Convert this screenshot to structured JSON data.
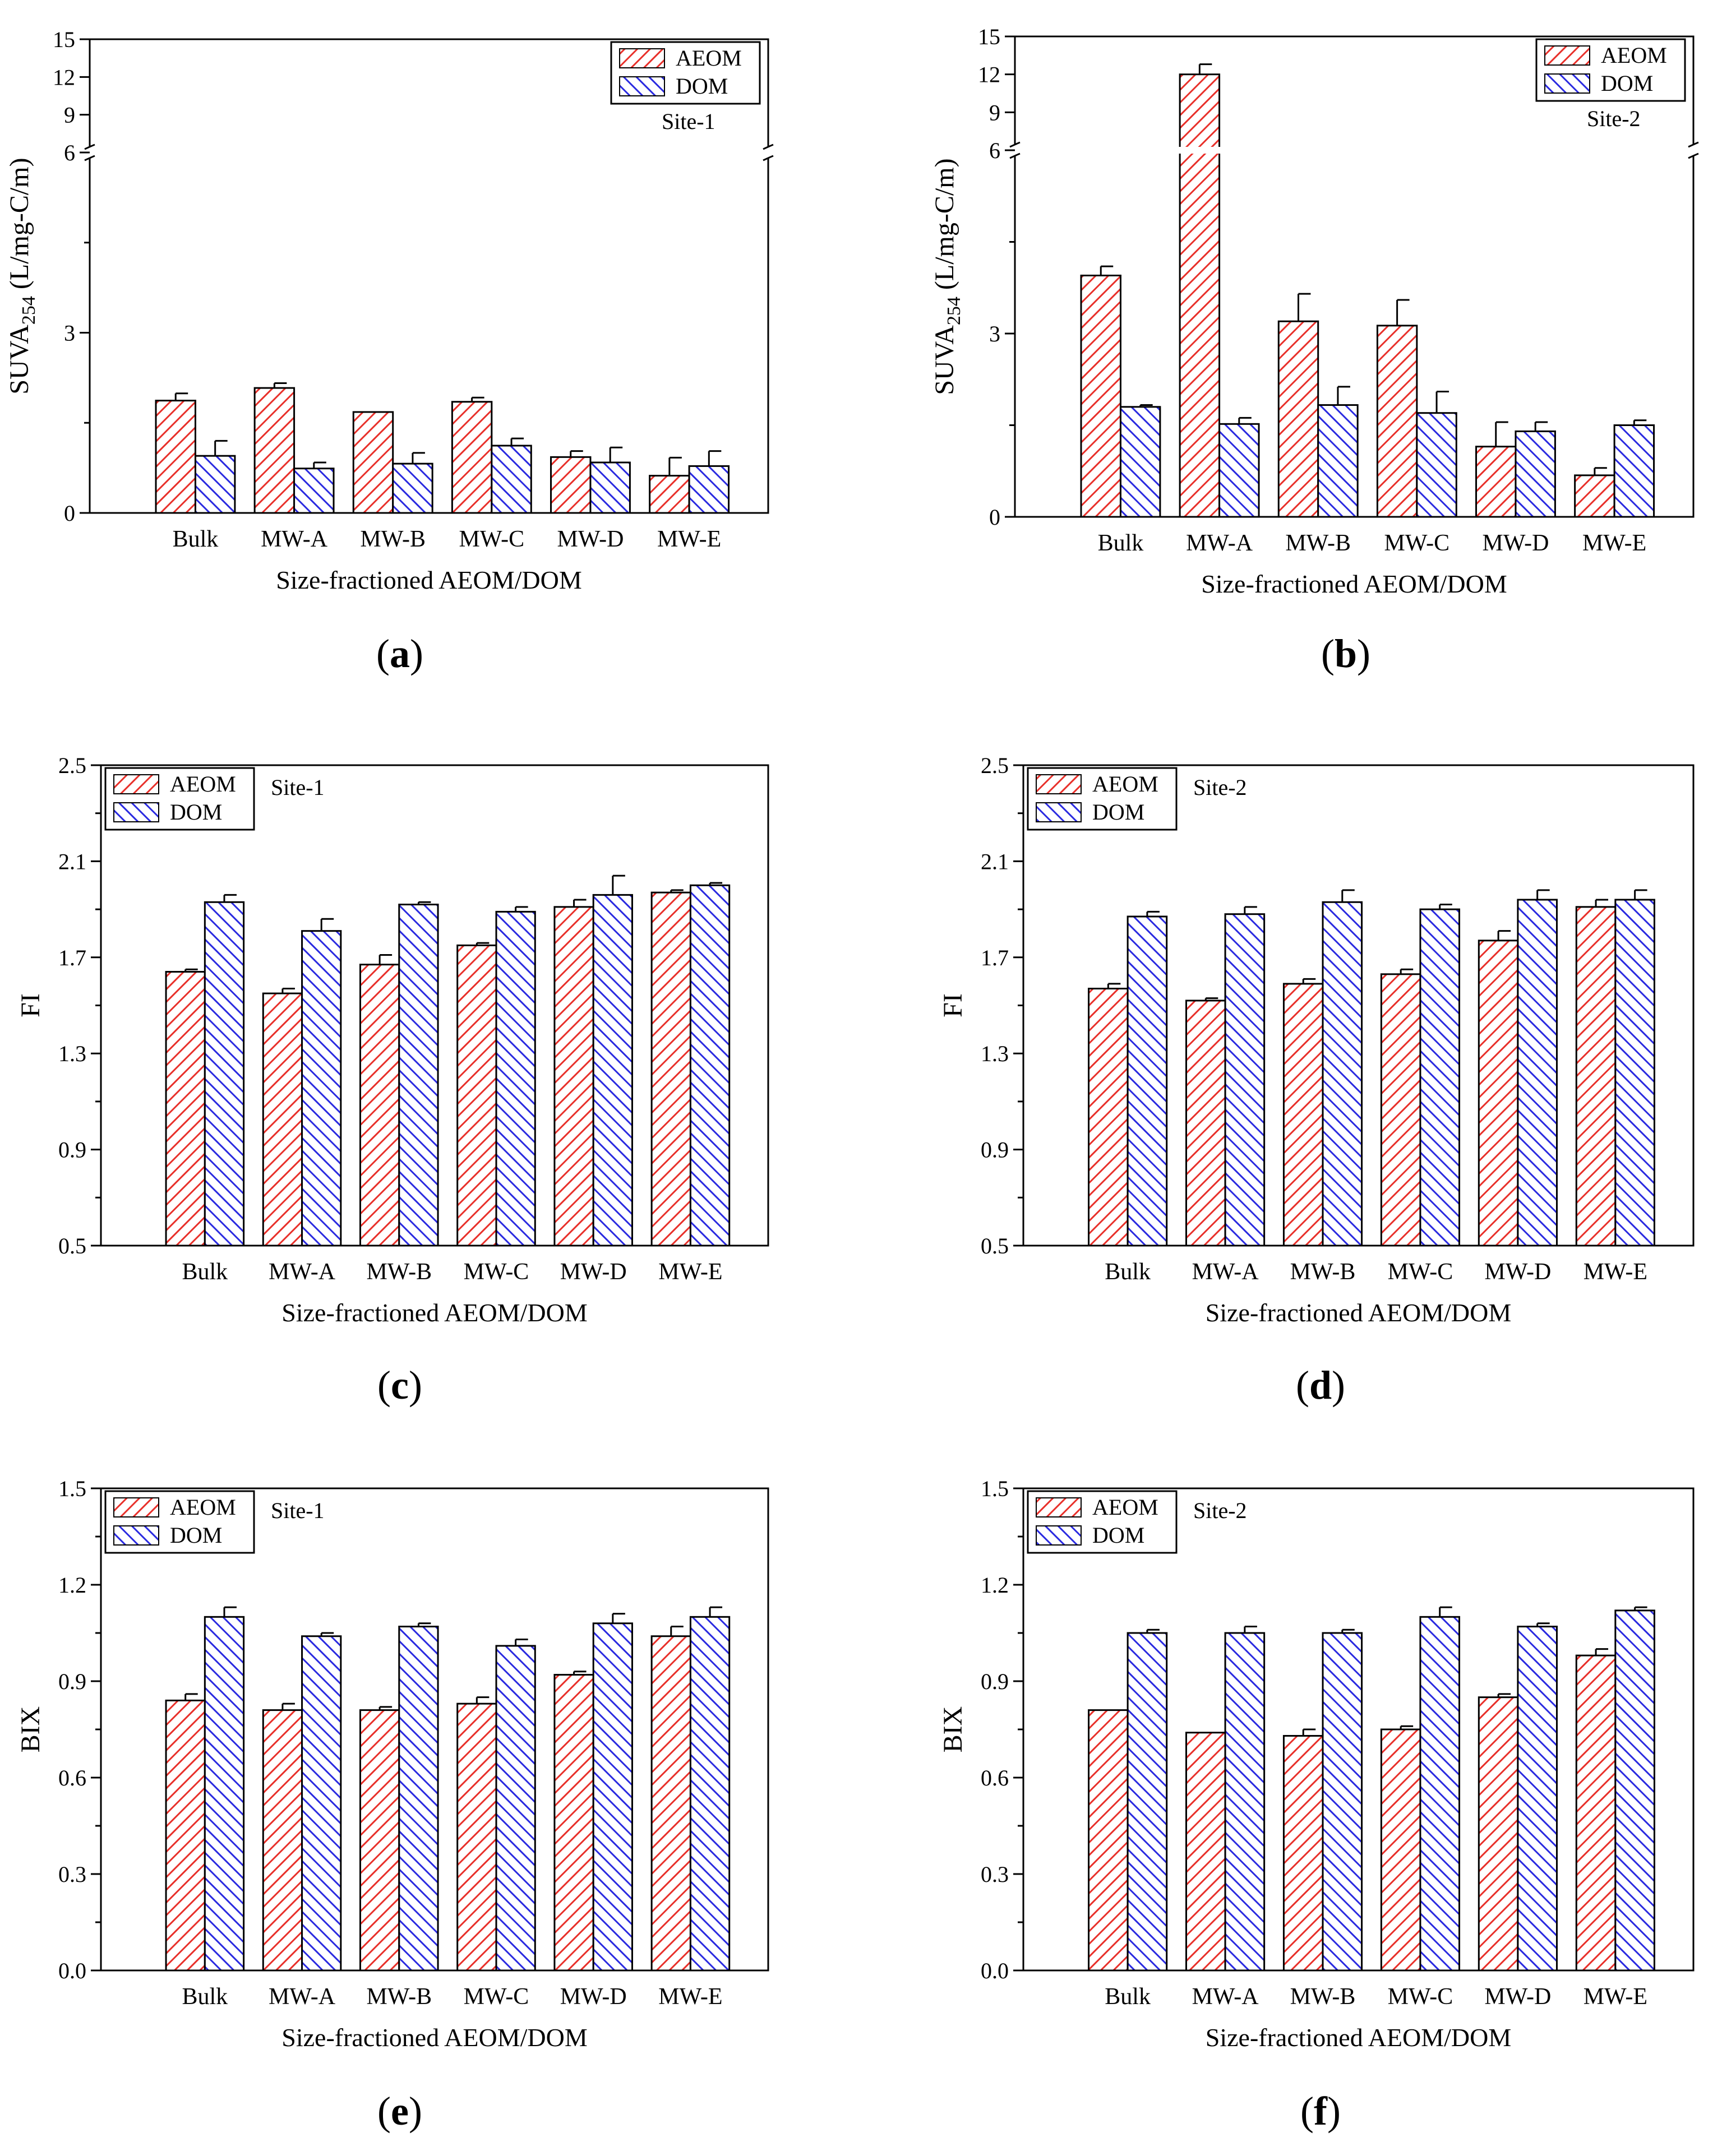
{
  "colors": {
    "aeom": "#e8302a",
    "dom": "#2a2ae0",
    "axis": "#000000"
  },
  "chart_data": [
    {
      "type": "bar",
      "panel_label": "a",
      "site_label": "Site-1",
      "xlabel": "Size-fractioned AEOM/DOM",
      "ylabel_main": "SUVA",
      "ylabel_sub": "254",
      "ylabel_unit": " (L/mg-C/m)",
      "categories": [
        "Bulk",
        "MW-A",
        "MW-B",
        "MW-C",
        "MW-D",
        "MW-E"
      ],
      "series": [
        {
          "name": "AEOM",
          "values": [
            1.87,
            2.08,
            1.68,
            1.85,
            0.93,
            0.62
          ],
          "errors": [
            0.12,
            0.08,
            0.0,
            0.07,
            0.1,
            0.3
          ]
        },
        {
          "name": "DOM",
          "values": [
            0.95,
            0.74,
            0.82,
            1.12,
            0.84,
            0.78
          ],
          "errors": [
            0.25,
            0.1,
            0.18,
            0.12,
            0.25,
            0.25
          ]
        }
      ],
      "y_axis": {
        "lower": [
          0,
          6
        ],
        "upper": [
          6,
          15
        ],
        "lower_ticks": [
          "0",
          "3",
          "6"
        ],
        "upper_ticks": [
          "9",
          "12",
          "15"
        ],
        "broken": true
      },
      "legend_position": "top-right"
    },
    {
      "type": "bar",
      "panel_label": "b",
      "site_label": "Site-2",
      "xlabel": "Size-fractioned AEOM/DOM",
      "ylabel_main": "SUVA",
      "ylabel_sub": "254",
      "ylabel_unit": " (L/mg-C/m)",
      "categories": [
        "Bulk",
        "MW-A",
        "MW-B",
        "MW-C",
        "MW-D",
        "MW-E"
      ],
      "series": [
        {
          "name": "AEOM",
          "values": [
            3.95,
            12.0,
            3.2,
            3.13,
            1.15,
            0.68
          ],
          "errors": [
            0.15,
            0.8,
            0.45,
            0.42,
            0.4,
            0.12
          ]
        },
        {
          "name": "DOM",
          "values": [
            1.8,
            1.52,
            1.83,
            1.7,
            1.4,
            1.5
          ],
          "errors": [
            0.03,
            0.1,
            0.3,
            0.35,
            0.15,
            0.08
          ]
        }
      ],
      "y_axis": {
        "lower": [
          0,
          6
        ],
        "upper": [
          6,
          15
        ],
        "lower_ticks": [
          "0",
          "3",
          "6"
        ],
        "upper_ticks": [
          "9",
          "12",
          "15"
        ],
        "broken": true
      },
      "legend_position": "top-right"
    },
    {
      "type": "bar",
      "panel_label": "c",
      "site_label": "Site-1",
      "xlabel": "Size-fractioned AEOM/DOM",
      "ylabel": "FI",
      "categories": [
        "Bulk",
        "MW-A",
        "MW-B",
        "MW-C",
        "MW-D",
        "MW-E"
      ],
      "series": [
        {
          "name": "AEOM",
          "values": [
            1.64,
            1.55,
            1.67,
            1.75,
            1.91,
            1.97
          ],
          "errors": [
            0.01,
            0.02,
            0.04,
            0.01,
            0.03,
            0.01
          ]
        },
        {
          "name": "DOM",
          "values": [
            1.93,
            1.81,
            1.92,
            1.89,
            1.96,
            2.0
          ],
          "errors": [
            0.03,
            0.05,
            0.01,
            0.02,
            0.08,
            0.01
          ]
        }
      ],
      "ylim": [
        0.5,
        2.5
      ],
      "yticks": [
        "0.5",
        "0.9",
        "1.3",
        "1.7",
        "2.1",
        "2.5"
      ],
      "legend_position": "top-left"
    },
    {
      "type": "bar",
      "panel_label": "d",
      "site_label": "Site-2",
      "xlabel": "Size-fractioned AEOM/DOM",
      "ylabel": "FI",
      "categories": [
        "Bulk",
        "MW-A",
        "MW-B",
        "MW-C",
        "MW-D",
        "MW-E"
      ],
      "series": [
        {
          "name": "AEOM",
          "values": [
            1.57,
            1.52,
            1.59,
            1.63,
            1.77,
            1.91
          ],
          "errors": [
            0.02,
            0.01,
            0.02,
            0.02,
            0.04,
            0.03
          ]
        },
        {
          "name": "DOM",
          "values": [
            1.87,
            1.88,
            1.93,
            1.9,
            1.94,
            1.94
          ],
          "errors": [
            0.02,
            0.03,
            0.05,
            0.02,
            0.04,
            0.04
          ]
        }
      ],
      "ylim": [
        0.5,
        2.5
      ],
      "yticks": [
        "0.5",
        "0.9",
        "1.3",
        "1.7",
        "2.1",
        "2.5"
      ],
      "legend_position": "top-left"
    },
    {
      "type": "bar",
      "panel_label": "e",
      "site_label": "Site-1",
      "xlabel": "Size-fractioned AEOM/DOM",
      "ylabel": "BIX",
      "categories": [
        "Bulk",
        "MW-A",
        "MW-B",
        "MW-C",
        "MW-D",
        "MW-E"
      ],
      "series": [
        {
          "name": "AEOM",
          "values": [
            0.84,
            0.81,
            0.81,
            0.83,
            0.92,
            1.04
          ],
          "errors": [
            0.02,
            0.02,
            0.01,
            0.02,
            0.01,
            0.03
          ]
        },
        {
          "name": "DOM",
          "values": [
            1.1,
            1.04,
            1.07,
            1.01,
            1.08,
            1.1
          ],
          "errors": [
            0.03,
            0.01,
            0.01,
            0.02,
            0.03,
            0.03
          ]
        }
      ],
      "ylim": [
        0,
        1.5
      ],
      "yticks": [
        "0.0",
        "0.3",
        "0.6",
        "0.9",
        "1.2",
        "1.5"
      ],
      "legend_position": "top-left"
    },
    {
      "type": "bar",
      "panel_label": "f",
      "site_label": "Site-2",
      "xlabel": "Size-fractioned AEOM/DOM",
      "ylabel": "BIX",
      "categories": [
        "Bulk",
        "MW-A",
        "MW-B",
        "MW-C",
        "MW-D",
        "MW-E"
      ],
      "series": [
        {
          "name": "AEOM",
          "values": [
            0.81,
            0.74,
            0.73,
            0.75,
            0.85,
            0.98
          ],
          "errors": [
            0.0,
            0.0,
            0.02,
            0.01,
            0.01,
            0.02
          ]
        },
        {
          "name": "DOM",
          "values": [
            1.05,
            1.05,
            1.05,
            1.1,
            1.07,
            1.12
          ],
          "errors": [
            0.01,
            0.02,
            0.01,
            0.03,
            0.01,
            0.01
          ]
        }
      ],
      "ylim": [
        0,
        1.5
      ],
      "yticks": [
        "0.0",
        "0.3",
        "0.6",
        "0.9",
        "1.2",
        "1.5"
      ],
      "legend_position": "top-left"
    }
  ]
}
